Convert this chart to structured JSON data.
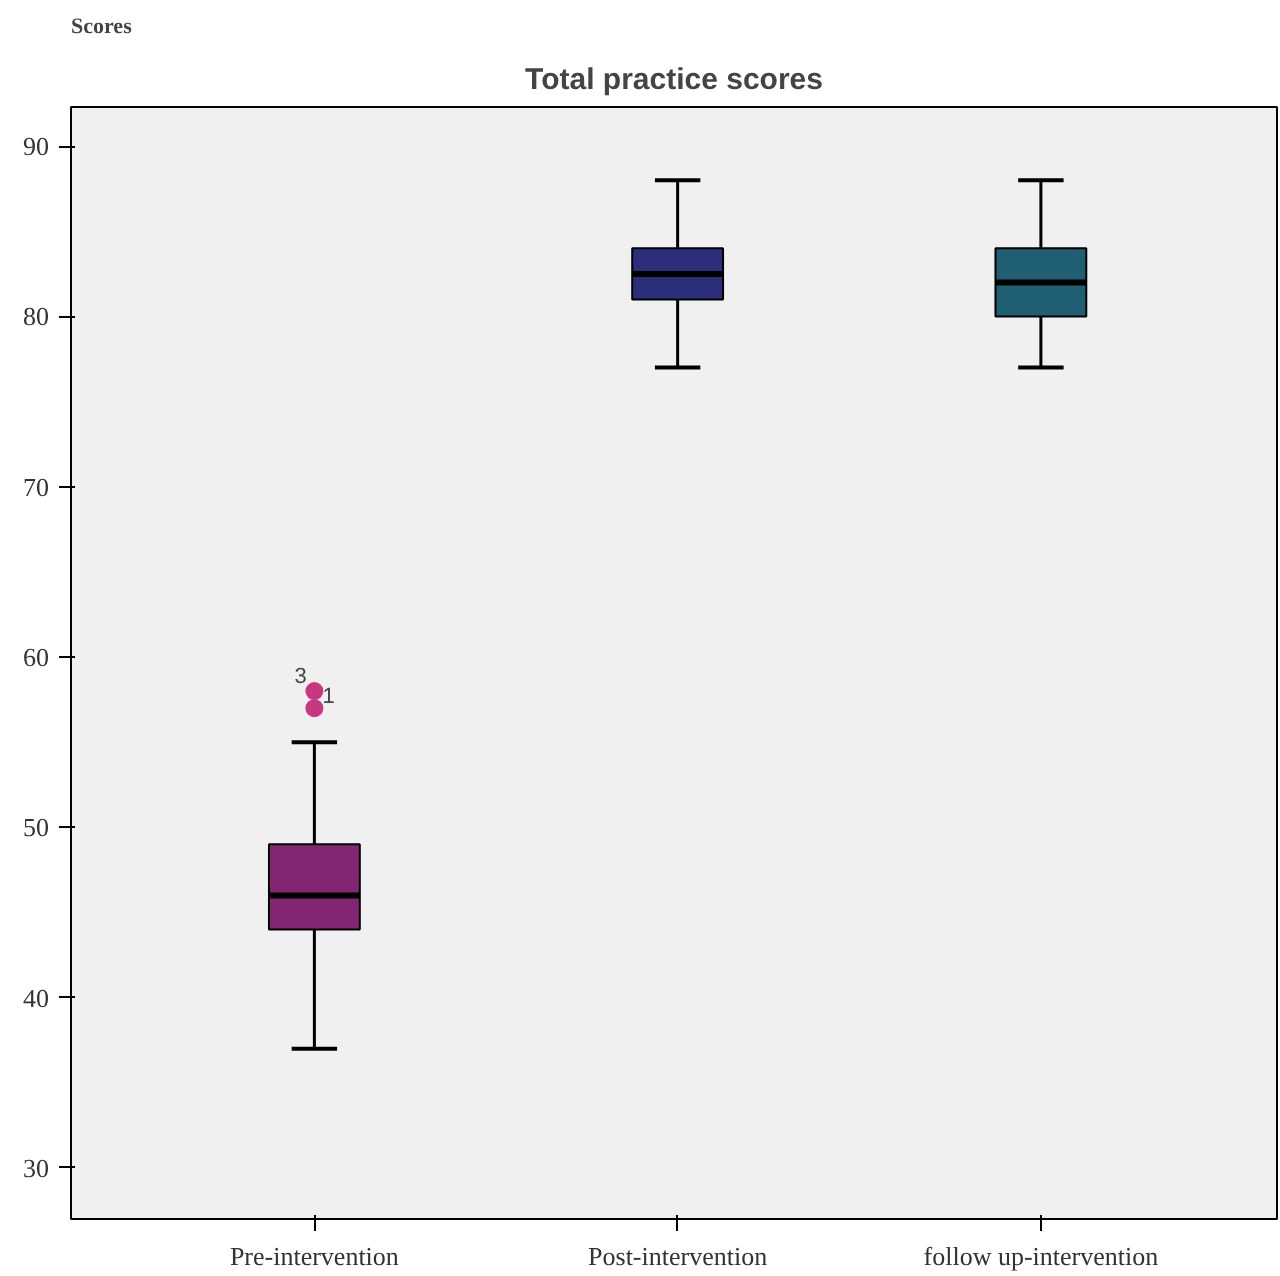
{
  "chart_data": {
    "type": "box",
    "title": "Total practice scores",
    "ylabel": "Scores",
    "categories": [
      "Pre-intervention",
      "Post-intervention",
      "follow up-intervention"
    ],
    "colors": [
      "#822573",
      "#2b2f7a",
      "#1f5e73"
    ],
    "boxes": [
      {
        "low": 37,
        "q1": 44,
        "median": 46,
        "q3": 49,
        "high": 55,
        "outliers": [
          58,
          57
        ]
      },
      {
        "low": 77,
        "q1": 81,
        "median": 82.5,
        "q3": 84,
        "high": 88
      },
      {
        "low": 77,
        "q1": 80,
        "median": 82,
        "q3": 84,
        "high": 88
      }
    ],
    "annotations": [
      "3",
      "1"
    ],
    "ylim": [
      27,
      92.3
    ],
    "yticks": [
      30,
      40,
      50,
      60,
      70,
      80,
      90
    ],
    "grid": false
  }
}
